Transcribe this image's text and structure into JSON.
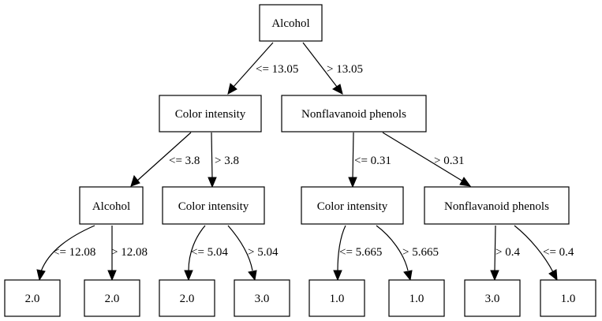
{
  "tree": {
    "nodes": {
      "n0": "Alcohol",
      "n1": "Color intensity",
      "n2": "Nonflavanoid phenols",
      "n3": "Alcohol",
      "n4": "Color intensity",
      "n5": "Color intensity",
      "n6": "Nonflavanoid phenols",
      "l1": "2.0",
      "l2": "2.0",
      "l3": "2.0",
      "l4": "3.0",
      "l5": "1.0",
      "l6": "1.0",
      "l7": "3.0",
      "l8": "1.0"
    },
    "edges": {
      "e_n0_n1": "<= 13.05",
      "e_n0_n2": "> 13.05",
      "e_n1_n3": "<= 3.8",
      "e_n1_n4": "> 3.8",
      "e_n2_n5": "<= 0.31",
      "e_n2_n6": "> 0.31",
      "e_n3_l1": "<= 12.08",
      "e_n3_l2": "> 12.08",
      "e_n4_l3": "<= 5.04",
      "e_n4_l4": "> 5.04",
      "e_n5_l5": "<= 5.665",
      "e_n5_l6": "> 5.665",
      "e_n6_l7": "> 0.4",
      "e_n6_l8": "<= 0.4"
    }
  }
}
